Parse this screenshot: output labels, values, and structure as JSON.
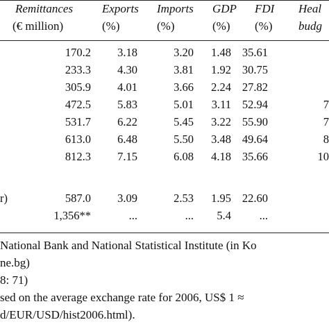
{
  "header": {
    "columns": [
      {
        "title": "Remittances",
        "sub": "(€  million)"
      },
      {
        "title": "Exports",
        "sub": "(%)"
      },
      {
        "title": "Imports",
        "sub": "(%)"
      },
      {
        "title": "GDP",
        "sub": "(%)"
      },
      {
        "title": "FDI",
        "sub": "(%)"
      },
      {
        "title": "Heal",
        "sub": "budg"
      }
    ]
  },
  "rows": [
    {
      "label": "",
      "cells": [
        "170.2",
        "3.18",
        "3.20",
        "1.48",
        "35.61",
        ""
      ]
    },
    {
      "label": "",
      "cells": [
        "233.3",
        "4.30",
        "3.81",
        "1.92",
        "30.75",
        ""
      ]
    },
    {
      "label": "",
      "cells": [
        "305.9",
        "4.01",
        "3.66",
        "2.24",
        "27.82",
        ""
      ]
    },
    {
      "label": "",
      "cells": [
        "472.5",
        "5.83",
        "5.01",
        "3.11",
        "52.94",
        "7"
      ]
    },
    {
      "label": "",
      "cells": [
        "531.7",
        "6.22",
        "5.45",
        "3.22",
        "55.90",
        "7"
      ]
    },
    {
      "label": "",
      "cells": [
        "613.0",
        "6.48",
        "5.50",
        "3.48",
        "49.64",
        "8"
      ]
    },
    {
      "label": "",
      "cells": [
        "812.3",
        "7.15",
        "6.08",
        "4.18",
        "35.66",
        "10"
      ]
    },
    {
      "label": "r)",
      "cells": [
        "587.0",
        "3.09",
        "2.53",
        "1.95",
        "22.60",
        ""
      ]
    },
    {
      "label": "",
      "cells": [
        "1,356**",
        "...",
        "...",
        "5.4",
        "...",
        ""
      ]
    }
  ],
  "notes": [
    "National Bank and National Statistical Institute (in Ko",
    "ne.bg)",
    "8: 71)",
    "sed on the average exchange rate for 2006, US$ 1 ≈",
    "d/EUR/USD/hist2006.html)."
  ]
}
